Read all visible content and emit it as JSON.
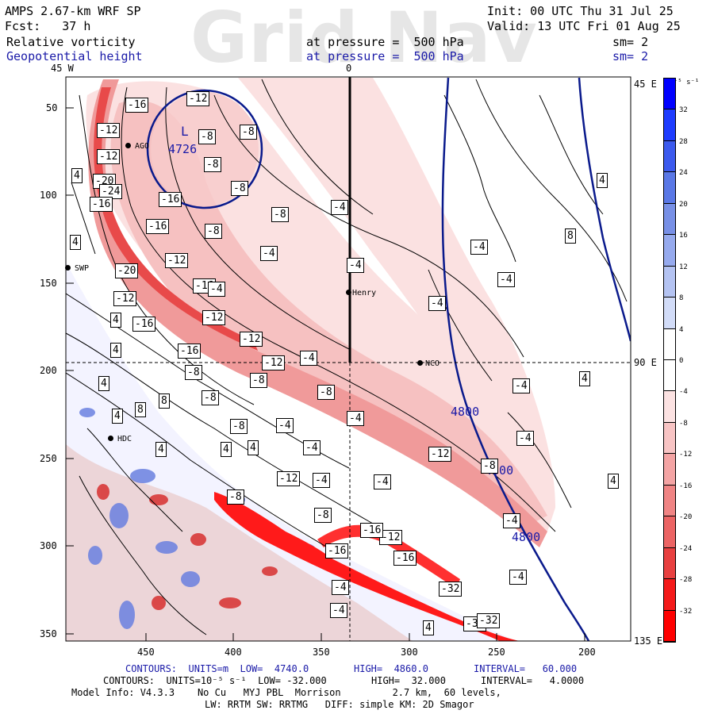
{
  "header": {
    "model": "AMPS 2.67-km WRF SP",
    "init": "Init: 00 UTC Thu 31 Jul 25",
    "fcst": "Fcst:   37 h",
    "valid": "Valid: 13 UTC Fri 01 Aug 25",
    "field1": "Relative vorticity",
    "field1_pressure": "at pressure =  500 hPa",
    "field1_sm": "sm= 2",
    "field2": "Geopotential height",
    "field2_pressure": "at pressure =  500 hPa",
    "field2_sm": "sm= 2",
    "watermark": "Grid Nav"
  },
  "axes": {
    "top_left": "45 W",
    "top_mid": "0",
    "right_top": "45 E",
    "right_mid": "90 E",
    "right_bottom": "135 E",
    "y_ticks": [
      "50",
      "100",
      "150",
      "200",
      "250",
      "300",
      "350"
    ],
    "x_ticks": [
      "450",
      "400",
      "350",
      "300",
      "250",
      "200"
    ]
  },
  "colorbar": {
    "unit": "10⁻⁵ s⁻¹",
    "labels": [
      "32",
      "28",
      "24",
      "20",
      "16",
      "12",
      "8",
      "4",
      "0",
      "-4",
      "-8",
      "-12",
      "-16",
      "-20",
      "-24",
      "-28",
      "-32"
    ],
    "colors": [
      "#0000ff",
      "#1e3cff",
      "#3c5aee",
      "#5a78e6",
      "#7890e6",
      "#96aaee",
      "#b4c3f2",
      "#d2dcf8",
      "#ffffff",
      "#ffffff",
      "#fce2e2",
      "#f8c4c4",
      "#f4a4a4",
      "#f08484",
      "#ec6464",
      "#e84040",
      "#f41a1a",
      "#ff0000"
    ]
  },
  "stations": [
    {
      "name": "AGO"
    },
    {
      "name": "SWP"
    },
    {
      "name": "Henry"
    },
    {
      "name": "NCO"
    },
    {
      "name": "HDC"
    }
  ],
  "low_center": {
    "letter": "L",
    "value": "4726"
  },
  "height_contour_labels": [
    "4800",
    "4800",
    "4800"
  ],
  "vorticity_labels": [
    "-16",
    "-12",
    "-12",
    "-8",
    "-8",
    "-8",
    "-8",
    "-12",
    "-20",
    "-24",
    "-16",
    "-16",
    "-16",
    "-20",
    "-16",
    "-12",
    "-12",
    "-16",
    "-16",
    "-12",
    "-12",
    "-8",
    "-8",
    "-8",
    "-8",
    "-8",
    "-8",
    "-8",
    "-4",
    "-4",
    "-4",
    "-4",
    "-4",
    "-4",
    "-4",
    "-4",
    "-4",
    "-4",
    "-4",
    "-4",
    "-4",
    "-12",
    "-12",
    "-12",
    "-12",
    "-16",
    "-16",
    "-16",
    "-32",
    "-32",
    "-32",
    "4",
    "4",
    "4",
    "4",
    "4",
    "4",
    "4",
    "4",
    "4",
    "4",
    "4",
    "4",
    "4",
    "8",
    "8",
    "8",
    "-8",
    "-8",
    "-8",
    "-4",
    "-4",
    "-4",
    "-4",
    "-4",
    "-4",
    "-4"
  ],
  "footer": {
    "line1_a": "CONTOURS:  UNITS=m  LOW=  4740.0",
    "line1_b": "HIGH=  4860.0",
    "line1_c": "INTERVAL=   60.000",
    "line2_a": "CONTOURS:  UNITS=10⁻⁵ s⁻¹  LOW= -32.000",
    "line2_b": "HIGH=  32.000",
    "line2_c": "INTERVAL=   4.0000",
    "line3": "Model Info: V4.3.3    No Cu   MYJ PBL  Morrison         2.7 km,  60 levels,",
    "line4": "LW: RRTM SW: RRTMG   DIFF: simple KM: 2D Smagor"
  }
}
